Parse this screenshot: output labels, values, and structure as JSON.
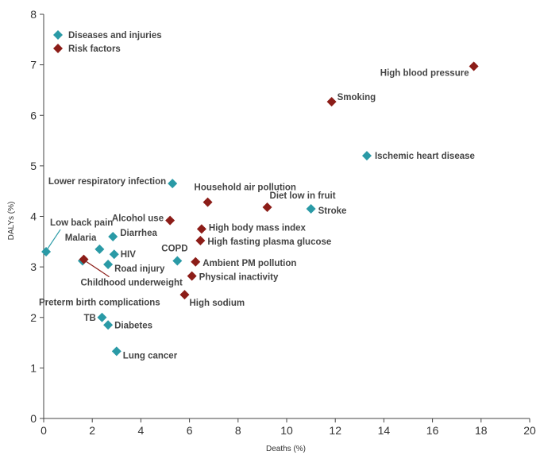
{
  "chart_data": {
    "type": "scatter",
    "xlabel": "Deaths (%)",
    "ylabel": "DALYs (%)",
    "xlim": [
      0,
      20
    ],
    "ylim": [
      0,
      8
    ],
    "xticks": [
      "0",
      "2",
      "4",
      "6",
      "8",
      "10",
      "12",
      "14",
      "16",
      "18",
      "20"
    ],
    "yticks": [
      "0",
      "1",
      "2",
      "3",
      "4",
      "5",
      "6",
      "7",
      "8"
    ],
    "grid": false,
    "legend_position": "top-left",
    "colors": {
      "diseases": "#2a9aa6",
      "risks": "#8c1d18"
    },
    "series": [
      {
        "name": "Diseases and injuries",
        "marker": "diamond",
        "points": [
          {
            "label": "Ischemic heart disease",
            "x": 13.3,
            "y": 5.2
          },
          {
            "label": "Stroke",
            "x": 11.0,
            "y": 4.15
          },
          {
            "label": "Lower respiratory infection",
            "x": 5.3,
            "y": 4.65
          },
          {
            "label": "Low back pain",
            "x": 0.1,
            "y": 3.3
          },
          {
            "label": "Diarrhea",
            "x": 2.85,
            "y": 3.6
          },
          {
            "label": "Malaria",
            "x": 2.3,
            "y": 3.35
          },
          {
            "label": "HIV",
            "x": 2.9,
            "y": 3.25
          },
          {
            "label": "Road injury",
            "x": 2.65,
            "y": 3.05
          },
          {
            "label": "COPD",
            "x": 5.5,
            "y": 3.12
          },
          {
            "label": "Preterm birth complications",
            "x": 1.6,
            "y": 3.12
          },
          {
            "label": "TB",
            "x": 2.4,
            "y": 2.0
          },
          {
            "label": "Diabetes",
            "x": 2.65,
            "y": 1.85
          },
          {
            "label": "Lung cancer",
            "x": 3.0,
            "y": 1.33
          }
        ]
      },
      {
        "name": "Risk factors",
        "marker": "diamond",
        "points": [
          {
            "label": "High blood pressure",
            "x": 17.7,
            "y": 6.97
          },
          {
            "label": "Smoking",
            "x": 11.85,
            "y": 6.27
          },
          {
            "label": "Household air pollution",
            "x": 6.75,
            "y": 4.28
          },
          {
            "label": "Diet low in fruit",
            "x": 9.2,
            "y": 4.18
          },
          {
            "label": "Alcohol use",
            "x": 5.2,
            "y": 3.92
          },
          {
            "label": "High body mass index",
            "x": 6.5,
            "y": 3.75
          },
          {
            "label": "High fasting plasma glucose",
            "x": 6.45,
            "y": 3.52
          },
          {
            "label": "Ambient PM pollution",
            "x": 6.25,
            "y": 3.1
          },
          {
            "label": "Physical inactivity",
            "x": 6.1,
            "y": 2.82
          },
          {
            "label": "Childhood underweight",
            "x": 1.65,
            "y": 3.15
          },
          {
            "label": "High sodium",
            "x": 5.8,
            "y": 2.45
          }
        ]
      }
    ]
  }
}
